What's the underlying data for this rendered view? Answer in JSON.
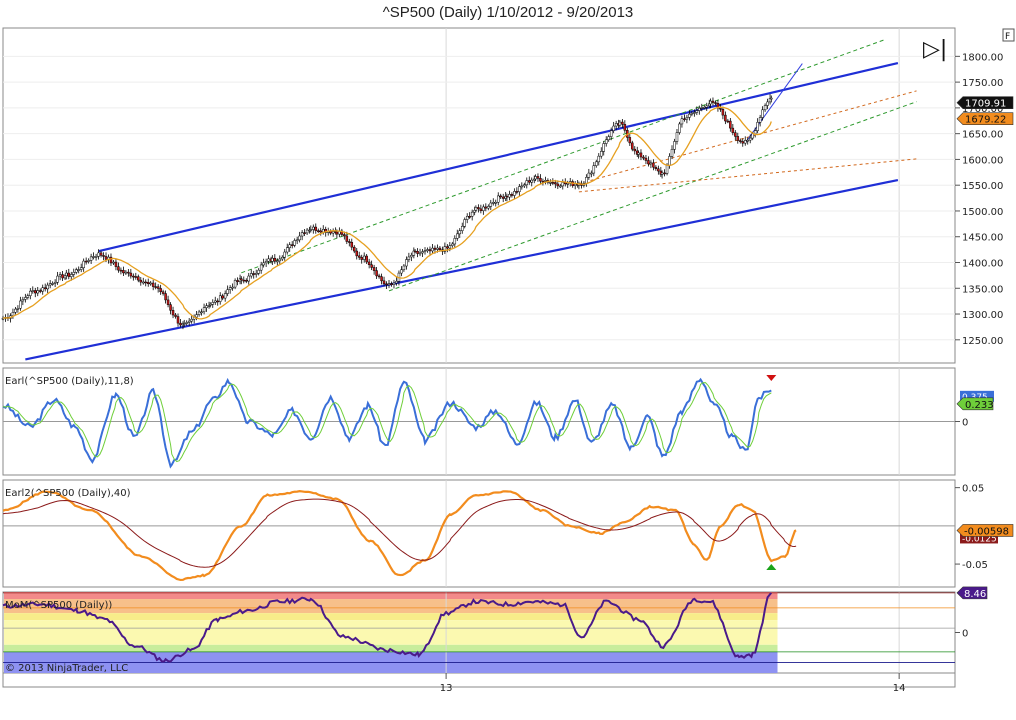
{
  "title": "^SP500 (Daily)  1/10/2012 - 9/20/2013",
  "toolbar": {
    "forward_glyph": "▷|",
    "f_label": "F"
  },
  "copyright": "© 2013 NinjaTrader, LLC",
  "x_axis": {
    "ticks": [
      {
        "label": "13",
        "date": "2013-01-01"
      },
      {
        "label": "14",
        "date": "2014-01-01"
      }
    ]
  },
  "chart_data": [
    {
      "type": "line",
      "panel": "price",
      "title": "^SP500 (Daily)  1/10/2012 - 9/20/2013",
      "x_range": [
        "2012-01-10",
        "2014-02-15"
      ],
      "ylim": [
        1205,
        1855
      ],
      "y_ticks": [
        "1800.00",
        "1750.00",
        "1700.00",
        "1650.00",
        "1600.00",
        "1550.00",
        "1500.00",
        "1450.00",
        "1400.00",
        "1350.00",
        "1300.00",
        "1250.00"
      ],
      "last_price": "1709.91",
      "ma_value": "1679.22",
      "series_colors": {
        "price": "#000000",
        "ma": "#e6a020",
        "trend_channel": "#1f2fd6",
        "inner_channel": "#2e9a2e",
        "fan": "#d2691e"
      },
      "anchors": [
        {
          "date": "2012-01-10",
          "close": 1292
        },
        {
          "date": "2012-02-05",
          "close": 1345
        },
        {
          "date": "2012-03-01",
          "close": 1375
        },
        {
          "date": "2012-03-27",
          "close": 1416
        },
        {
          "date": "2012-04-20",
          "close": 1378
        },
        {
          "date": "2012-05-10",
          "close": 1355
        },
        {
          "date": "2012-06-04",
          "close": 1278
        },
        {
          "date": "2012-06-25",
          "close": 1320
        },
        {
          "date": "2012-07-20",
          "close": 1365
        },
        {
          "date": "2012-08-14",
          "close": 1405
        },
        {
          "date": "2012-09-14",
          "close": 1466
        },
        {
          "date": "2012-10-05",
          "close": 1460
        },
        {
          "date": "2012-10-25",
          "close": 1410
        },
        {
          "date": "2012-11-16",
          "close": 1355
        },
        {
          "date": "2012-12-07",
          "close": 1418
        },
        {
          "date": "2012-12-31",
          "close": 1426
        },
        {
          "date": "2013-01-25",
          "close": 1502
        },
        {
          "date": "2013-02-19",
          "close": 1530
        },
        {
          "date": "2013-03-14",
          "close": 1563
        },
        {
          "date": "2013-04-03",
          "close": 1553
        },
        {
          "date": "2013-04-18",
          "close": 1553
        },
        {
          "date": "2013-05-21",
          "close": 1668
        },
        {
          "date": "2013-06-05",
          "close": 1608
        },
        {
          "date": "2013-06-24",
          "close": 1573
        },
        {
          "date": "2013-07-12",
          "close": 1682
        },
        {
          "date": "2013-08-02",
          "close": 1709
        },
        {
          "date": "2013-08-30",
          "close": 1632
        },
        {
          "date": "2013-09-20",
          "close": 1719
        }
      ],
      "trend_lines": [
        {
          "name": "upper-channel",
          "points": [
            {
              "date": "2012-03-27",
              "y": 1422
            },
            {
              "date": "2013-12-31",
              "y": 1787
            }
          ]
        },
        {
          "name": "lower-channel",
          "points": [
            {
              "date": "2012-01-28",
              "y": 1212
            },
            {
              "date": "2013-12-31",
              "y": 1560
            }
          ]
        },
        {
          "name": "inner-upper",
          "points": [
            {
              "date": "2012-07-20",
              "y": 1380
            },
            {
              "date": "2013-12-20",
              "y": 1832
            }
          ]
        },
        {
          "name": "inner-lower",
          "points": [
            {
              "date": "2012-11-16",
              "y": 1345
            },
            {
              "date": "2014-01-15",
              "y": 1712
            }
          ]
        },
        {
          "name": "fan-upper",
          "points": [
            {
              "date": "2013-04-18",
              "y": 1553
            },
            {
              "date": "2014-01-15",
              "y": 1733
            }
          ]
        },
        {
          "name": "fan-lower",
          "points": [
            {
              "date": "2013-04-18",
              "y": 1537
            },
            {
              "date": "2014-01-15",
              "y": 1601
            }
          ]
        },
        {
          "name": "short-trend",
          "points": [
            {
              "date": "2013-08-30",
              "y": 1632
            },
            {
              "date": "2013-10-15",
              "y": 1786
            }
          ]
        }
      ]
    },
    {
      "type": "line",
      "panel": "oscillator",
      "label": "Earl(^SP500 (Daily),11,8)",
      "ylim": [
        -1.0,
        1.0
      ],
      "y_ticks": [
        "0"
      ],
      "value_label": "0.233",
      "hidden_value": "0.375",
      "series_colors": {
        "fast": "#3a6fd8",
        "slow": "#6fcf3a"
      },
      "anchors": [
        {
          "date": "2012-01-10",
          "v": 0.3
        },
        {
          "date": "2012-02-01",
          "v": -0.1
        },
        {
          "date": "2012-02-20",
          "v": 0.4
        },
        {
          "date": "2012-03-08",
          "v": -0.1
        },
        {
          "date": "2012-03-22",
          "v": -0.7
        },
        {
          "date": "2012-04-10",
          "v": 0.5
        },
        {
          "date": "2012-04-25",
          "v": -0.3
        },
        {
          "date": "2012-05-10",
          "v": 0.55
        },
        {
          "date": "2012-05-25",
          "v": -0.8
        },
        {
          "date": "2012-06-10",
          "v": -0.2
        },
        {
          "date": "2012-06-27",
          "v": 0.4
        },
        {
          "date": "2012-07-10",
          "v": 0.75
        },
        {
          "date": "2012-07-25",
          "v": 0.0
        },
        {
          "date": "2012-08-15",
          "v": -0.25
        },
        {
          "date": "2012-08-30",
          "v": 0.2
        },
        {
          "date": "2012-09-14",
          "v": -0.3
        },
        {
          "date": "2012-09-30",
          "v": 0.45
        },
        {
          "date": "2012-10-15",
          "v": -0.3
        },
        {
          "date": "2012-10-30",
          "v": 0.3
        },
        {
          "date": "2012-11-13",
          "v": -0.45
        },
        {
          "date": "2012-11-28",
          "v": 0.72
        },
        {
          "date": "2012-12-15",
          "v": -0.35
        },
        {
          "date": "2013-01-05",
          "v": 0.35
        },
        {
          "date": "2013-01-25",
          "v": -0.1
        },
        {
          "date": "2013-02-10",
          "v": 0.2
        },
        {
          "date": "2013-02-27",
          "v": -0.4
        },
        {
          "date": "2013-03-15",
          "v": 0.35
        },
        {
          "date": "2013-03-30",
          "v": -0.3
        },
        {
          "date": "2013-04-15",
          "v": 0.4
        },
        {
          "date": "2013-04-28",
          "v": -0.4
        },
        {
          "date": "2013-05-15",
          "v": 0.3
        },
        {
          "date": "2013-05-30",
          "v": -0.5
        },
        {
          "date": "2013-06-12",
          "v": 0.1
        },
        {
          "date": "2013-06-25",
          "v": -0.65
        },
        {
          "date": "2013-07-10",
          "v": 0.2
        },
        {
          "date": "2013-07-25",
          "v": 0.8
        },
        {
          "date": "2013-08-05",
          "v": 0.3
        },
        {
          "date": "2013-08-20",
          "v": -0.3
        },
        {
          "date": "2013-08-30",
          "v": -0.55
        },
        {
          "date": "2013-09-10",
          "v": 0.45
        },
        {
          "date": "2013-09-20",
          "v": 0.58
        }
      ]
    },
    {
      "type": "line",
      "panel": "oscillator",
      "label": "Earl2(^SP500 (Daily),40)",
      "ylim": [
        -0.08,
        0.06
      ],
      "y_ticks": [
        "0.05",
        "-0.05"
      ],
      "value_label": "-0.00598",
      "hidden_value": "-0.0125",
      "series_colors": {
        "main": "#f28c1e",
        "signal": "#8b1a1a"
      },
      "anchors": [
        {
          "date": "2012-01-10",
          "v": 0.02
        },
        {
          "date": "2012-02-15",
          "v": 0.045
        },
        {
          "date": "2012-03-20",
          "v": 0.02
        },
        {
          "date": "2012-05-01",
          "v": -0.04
        },
        {
          "date": "2012-06-01",
          "v": -0.07
        },
        {
          "date": "2012-06-20",
          "v": -0.065
        },
        {
          "date": "2012-07-20",
          "v": 0.0
        },
        {
          "date": "2012-08-10",
          "v": 0.04
        },
        {
          "date": "2012-09-10",
          "v": 0.045
        },
        {
          "date": "2012-10-05",
          "v": 0.035
        },
        {
          "date": "2012-11-01",
          "v": -0.02
        },
        {
          "date": "2012-11-25",
          "v": -0.065
        },
        {
          "date": "2012-12-15",
          "v": -0.045
        },
        {
          "date": "2013-01-05",
          "v": 0.015
        },
        {
          "date": "2013-01-25",
          "v": 0.04
        },
        {
          "date": "2013-02-20",
          "v": 0.045
        },
        {
          "date": "2013-03-20",
          "v": 0.02
        },
        {
          "date": "2013-04-10",
          "v": 0.0
        },
        {
          "date": "2013-05-05",
          "v": -0.01
        },
        {
          "date": "2013-05-25",
          "v": 0.005
        },
        {
          "date": "2013-06-15",
          "v": 0.025
        },
        {
          "date": "2013-07-05",
          "v": 0.02
        },
        {
          "date": "2013-07-20",
          "v": -0.025
        },
        {
          "date": "2013-07-30",
          "v": -0.045
        },
        {
          "date": "2013-08-10",
          "v": 0.0
        },
        {
          "date": "2013-08-25",
          "v": 0.028
        },
        {
          "date": "2013-09-05",
          "v": 0.02
        },
        {
          "date": "2013-09-20",
          "v": -0.045
        },
        {
          "date": "2013-10-01",
          "v": -0.04
        },
        {
          "date": "2013-10-10",
          "v": -0.006
        }
      ]
    },
    {
      "type": "line",
      "panel": "oscillator",
      "label": "MoM(^SP500 (Daily))",
      "ylim": [
        -4,
        4
      ],
      "y_ticks": [
        "0"
      ],
      "value_label": "8.46",
      "series_colors": {
        "line": "#4a1a8a"
      },
      "bands": [
        {
          "from": 3.8,
          "to": 4.6,
          "color": "#f28a8a"
        },
        {
          "from": 2.2,
          "to": 3.8,
          "color": "#f7c08a"
        },
        {
          "from": 1.4,
          "to": 2.2,
          "color": "#f7ed8a"
        },
        {
          "from": -1.4,
          "to": 1.4,
          "color": "#fbf9b0"
        },
        {
          "from": -2.2,
          "to": -1.4,
          "color": "#c8ed9c"
        },
        {
          "from": -4.6,
          "to": -2.2,
          "color": "#8e92f2"
        }
      ],
      "anchors": [
        {
          "date": "2012-01-10",
          "v": 3.0
        },
        {
          "date": "2012-02-10",
          "v": 3.2
        },
        {
          "date": "2012-03-10",
          "v": 2.5
        },
        {
          "date": "2012-04-01",
          "v": 1.5
        },
        {
          "date": "2012-04-25",
          "v": -1.5
        },
        {
          "date": "2012-05-20",
          "v": -3.2
        },
        {
          "date": "2012-06-10",
          "v": -2.0
        },
        {
          "date": "2012-07-01",
          "v": 1.5
        },
        {
          "date": "2012-07-25",
          "v": 2.5
        },
        {
          "date": "2012-08-20",
          "v": 3.5
        },
        {
          "date": "2012-09-14",
          "v": 3.8
        },
        {
          "date": "2012-10-10",
          "v": -0.5
        },
        {
          "date": "2012-11-15",
          "v": -2.0
        },
        {
          "date": "2012-12-10",
          "v": -2.5
        },
        {
          "date": "2013-01-01",
          "v": 2.2
        },
        {
          "date": "2013-01-25",
          "v": 3.5
        },
        {
          "date": "2013-02-20",
          "v": 3.2
        },
        {
          "date": "2013-03-10",
          "v": 3.5
        },
        {
          "date": "2013-04-05",
          "v": 3.2
        },
        {
          "date": "2013-04-20",
          "v": -0.5
        },
        {
          "date": "2013-05-10",
          "v": 3.5
        },
        {
          "date": "2013-06-05",
          "v": 1.5
        },
        {
          "date": "2013-06-25",
          "v": -1.5
        },
        {
          "date": "2013-07-20",
          "v": 3.8
        },
        {
          "date": "2013-08-02",
          "v": 3.5
        },
        {
          "date": "2013-08-25",
          "v": -2.8
        },
        {
          "date": "2013-09-05",
          "v": -2.5
        },
        {
          "date": "2013-09-20",
          "v": 4.5
        }
      ],
      "ref_levels": [
        {
          "v": 4.5,
          "color": "#8b1a1a"
        },
        {
          "v": 2.8,
          "color": "#f28c1e"
        },
        {
          "v": 0.5,
          "color": "#999999"
        },
        {
          "v": -2.2,
          "color": "#1a8b1a"
        },
        {
          "v": -3.4,
          "color": "#1a1a8b"
        }
      ]
    }
  ]
}
